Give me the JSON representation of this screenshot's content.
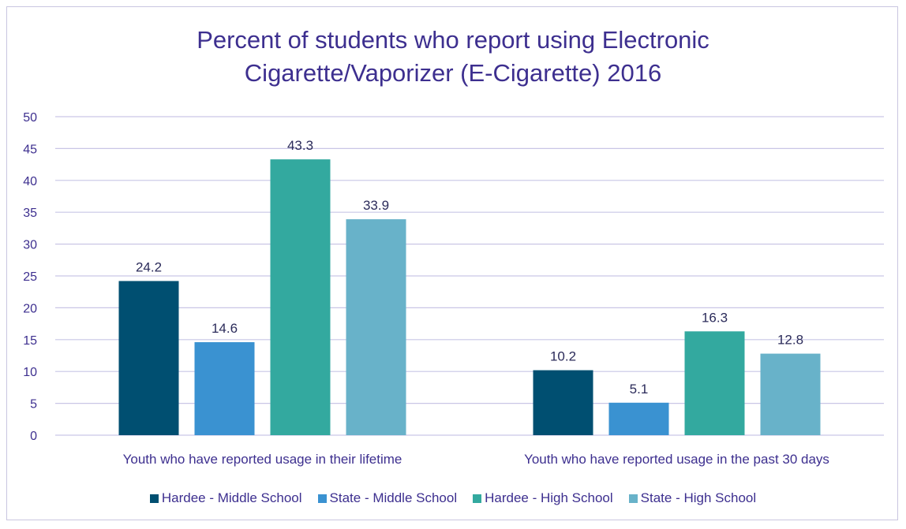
{
  "chart_data": {
    "type": "bar",
    "title_lines": [
      "Percent of students who report using Electronic",
      "Cigarette/Vaporizer (E-Cigarette) 2016"
    ],
    "categories": [
      "Youth who have reported usage in their lifetime",
      "Youth who have reported usage in the past 30 days"
    ],
    "series": [
      {
        "name": "Hardee - Middle School",
        "color": "#004f71",
        "values": [
          24.2,
          10.2
        ],
        "labels": [
          "24.2",
          "10.2"
        ]
      },
      {
        "name": "State - Middle School",
        "color": "#3a92d1",
        "values": [
          14.6,
          5.1
        ],
        "labels": [
          "14.6",
          "5.1"
        ]
      },
      {
        "name": "Hardee - High School",
        "color": "#33a99f",
        "values": [
          43.3,
          16.3
        ],
        "labels": [
          "43.3",
          "16.3"
        ]
      },
      {
        "name": "State - High School",
        "color": "#68b2c9",
        "values": [
          33.9,
          12.8
        ],
        "labels": [
          "33.9",
          "12.8"
        ]
      }
    ],
    "ylim": [
      0,
      50
    ],
    "yticks": [
      "0",
      "5",
      "10",
      "15",
      "20",
      "25",
      "30",
      "35",
      "40",
      "45",
      "50"
    ],
    "grid": true,
    "legend_position": "bottom"
  }
}
